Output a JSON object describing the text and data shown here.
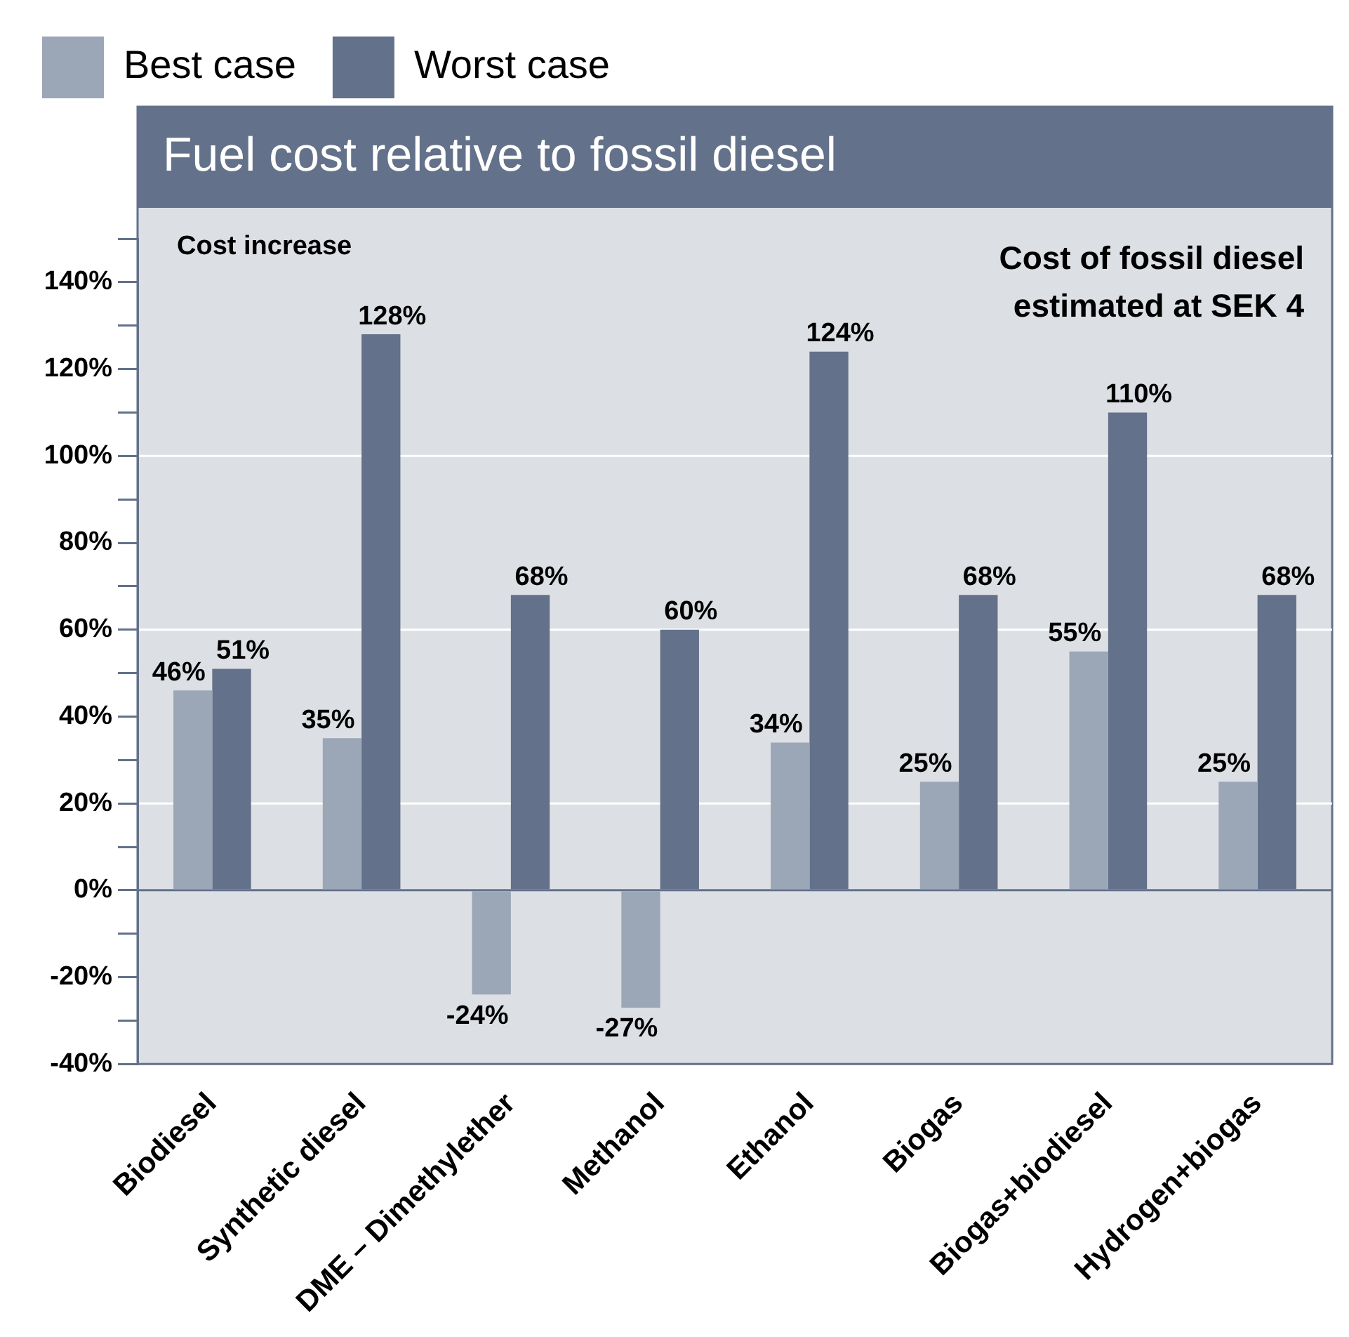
{
  "chart_data": {
    "type": "bar",
    "title": "Fuel cost relative to fossil diesel",
    "categories": [
      "Biodiesel",
      "Synthetic diesel",
      "DME – Dimethylether",
      "Methanol",
      "Ethanol",
      "Biogas",
      "Biogas+biodiesel",
      "Hydrogen+biogas"
    ],
    "series": [
      {
        "name": "Best case",
        "color": "#9ba7b6",
        "values": [
          46,
          35,
          -24,
          -27,
          34,
          25,
          55,
          25
        ],
        "value_labels": [
          "46%",
          "35%",
          "-24%",
          "-27%",
          "34%",
          "25%",
          "55%",
          "25%"
        ]
      },
      {
        "name": "Worst case",
        "color": "#63718a",
        "values": [
          51,
          128,
          68,
          60,
          124,
          68,
          110,
          68
        ],
        "value_labels": [
          "51%",
          "128%",
          "68%",
          "60%",
          "124%",
          "68%",
          "110%",
          "68%"
        ]
      }
    ],
    "ylim": [
      -40,
      150
    ],
    "yticks": [
      {
        "value": -40,
        "label": "-40%"
      },
      {
        "value": -30,
        "label": null
      },
      {
        "value": -20,
        "label": "-20%"
      },
      {
        "value": -10,
        "label": null
      },
      {
        "value": 0,
        "label": "0%"
      },
      {
        "value": 10,
        "label": null
      },
      {
        "value": 20,
        "label": "20%"
      },
      {
        "value": 30,
        "label": null
      },
      {
        "value": 40,
        "label": "40%"
      },
      {
        "value": 50,
        "label": null
      },
      {
        "value": 60,
        "label": "60%"
      },
      {
        "value": 70,
        "label": null
      },
      {
        "value": 80,
        "label": "80%"
      },
      {
        "value": 90,
        "label": null
      },
      {
        "value": 100,
        "label": "100%"
      },
      {
        "value": 110,
        "label": null
      },
      {
        "value": 120,
        "label": "120%"
      },
      {
        "value": 130,
        "label": null
      },
      {
        "value": 140,
        "label": "140%"
      },
      {
        "value": 150,
        "label": null
      }
    ],
    "ref_lines": [
      {
        "axis": "y",
        "value": 20,
        "color": "#ffffff"
      },
      {
        "axis": "y",
        "value": 60,
        "color": "#ffffff"
      },
      {
        "axis": "y",
        "value": 100,
        "color": "#ffffff"
      },
      {
        "axis": "y",
        "value": 0,
        "color": "#63718a"
      }
    ],
    "annotations": [
      "Cost increase",
      "Cost of fossil diesel\nestimated at SEK 4"
    ],
    "legend": "top left",
    "grid": false
  }
}
